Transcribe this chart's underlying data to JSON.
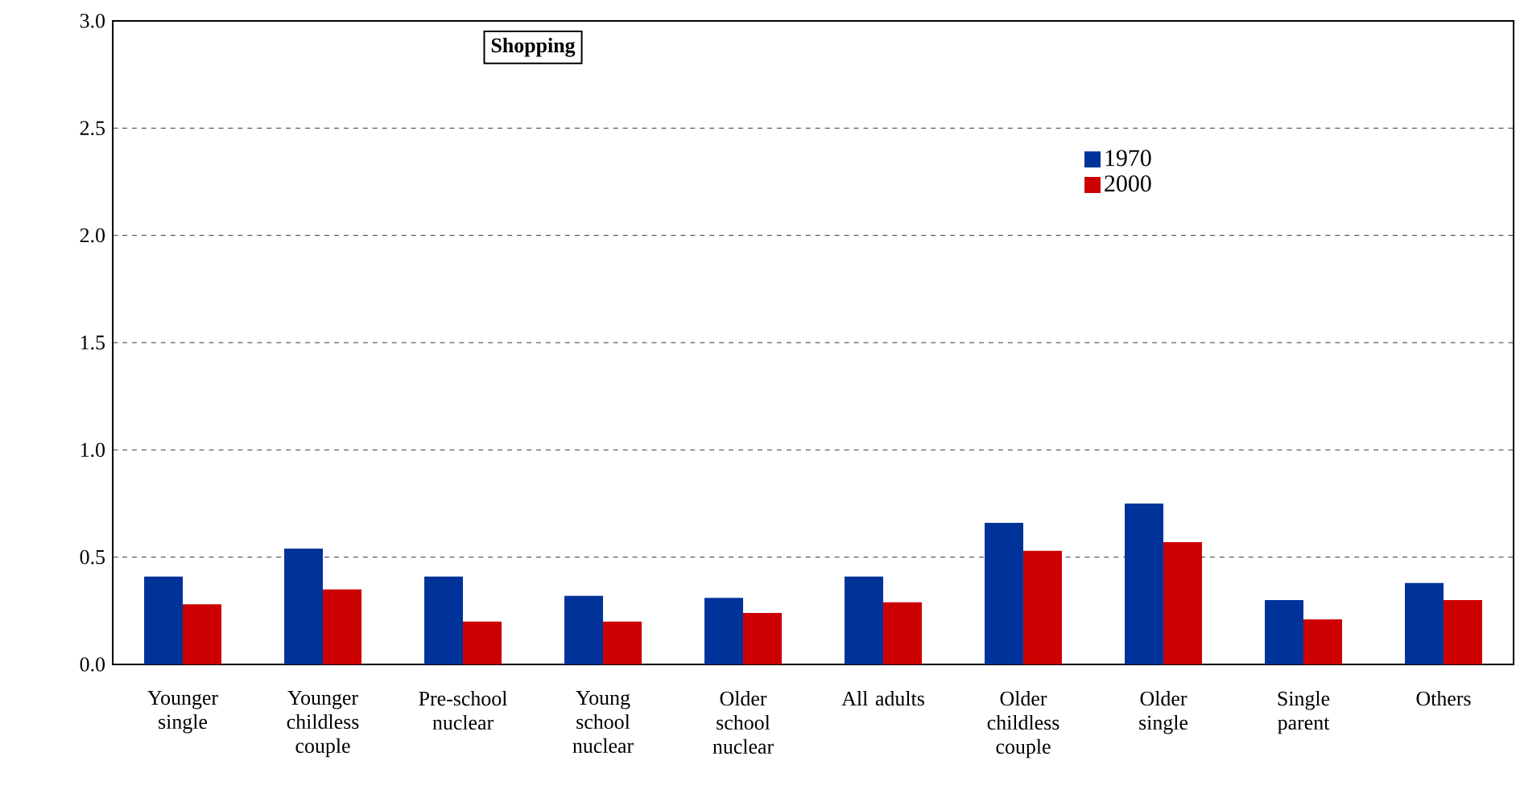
{
  "chart_data": {
    "type": "bar",
    "title": "**Shopping**",
    "categories": [
      "Younger single",
      "Younger childless couple",
      "Pre-school nuclear",
      "Young school nuclear",
      "Older school nuclear",
      "All adults",
      "Older childless couple",
      "Older single",
      "Single parent",
      "Others"
    ],
    "series": [
      {
        "name": "1970",
        "color": "#003399",
        "values": [
          0.41,
          0.54,
          0.41,
          0.32,
          0.31,
          0.41,
          0.66,
          0.75,
          0.3,
          0.38
        ]
      },
      {
        "name": "2000",
        "color": "#cc0000",
        "values": [
          0.28,
          0.35,
          0.2,
          0.2,
          0.24,
          0.29,
          0.53,
          0.57,
          0.21,
          0.3
        ]
      }
    ],
    "ylim": [
      0,
      3
    ],
    "yticks": [
      {
        "value": 0,
        "label": "0.0"
      },
      {
        "value": 0.5,
        "label": "0.5"
      },
      {
        "value": 1,
        "label": "1.0"
      },
      {
        "value": 1.5,
        "label": "1.5"
      },
      {
        "value": 2,
        "label": "2.0"
      },
      {
        "value": 2.5,
        "label": "2.5"
      },
      {
        "value": 3,
        "label": "3.0"
      }
    ],
    "grid": "y",
    "legend": "top right"
  }
}
